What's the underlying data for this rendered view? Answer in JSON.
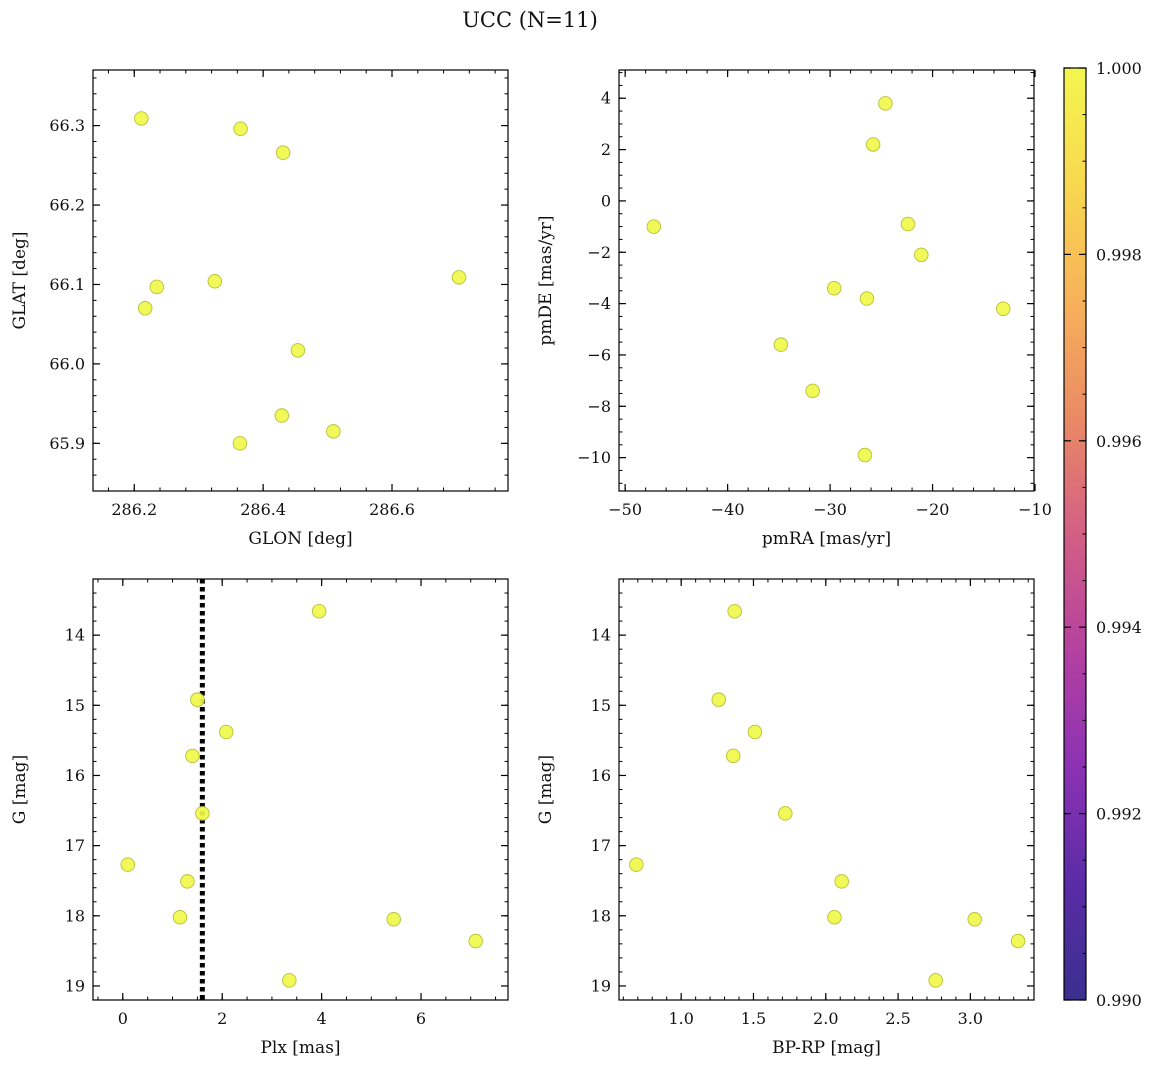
{
  "figure": {
    "title": "UCC (N=11)"
  },
  "colors": {
    "point_fill": "#f0f94a",
    "point_edge": "#b9c03a",
    "colormap": [
      "#3a2f8f",
      "#5a2ca6",
      "#8c32b4",
      "#b4419f",
      "#d35f85",
      "#ea8a65",
      "#f7b25a",
      "#f8d84f",
      "#f4f64f"
    ],
    "ref_line": "#000000"
  },
  "colorbar": {
    "min": 0.99,
    "max": 1.0,
    "ticks": [
      "0.990",
      "0.992",
      "0.994",
      "0.996",
      "0.998",
      "1.000"
    ]
  },
  "chart_data": [
    {
      "id": "panel-glon-glat",
      "type": "scatter",
      "xlabel": "GLON [deg]",
      "ylabel": "GLAT [deg]",
      "xlim": [
        286.136,
        286.78
      ],
      "ylim": [
        65.84,
        66.37
      ],
      "inverted_y": false,
      "xticks": [
        286.2,
        286.4,
        286.6
      ],
      "xtick_labels": [
        "286.2",
        "286.4",
        "286.6"
      ],
      "yticks": [
        65.9,
        66.0,
        66.1,
        66.2,
        66.3
      ],
      "ytick_labels": [
        "65.9",
        "66.0",
        "66.1",
        "66.2",
        "66.3"
      ],
      "xminor": 0.04,
      "yminor": 0.02,
      "points": [
        {
          "x": 286.211,
          "y": 66.309
        },
        {
          "x": 286.365,
          "y": 66.296
        },
        {
          "x": 286.431,
          "y": 66.266
        },
        {
          "x": 286.325,
          "y": 66.104
        },
        {
          "x": 286.235,
          "y": 66.097
        },
        {
          "x": 286.217,
          "y": 66.07
        },
        {
          "x": 286.704,
          "y": 66.109
        },
        {
          "x": 286.454,
          "y": 66.017
        },
        {
          "x": 286.429,
          "y": 65.935
        },
        {
          "x": 286.509,
          "y": 65.915
        },
        {
          "x": 286.364,
          "y": 65.9
        }
      ]
    },
    {
      "id": "panel-pmra-pmde",
      "type": "scatter",
      "xlabel": "pmRA [mas/yr]",
      "ylabel": "pmDE [mas/yr]",
      "xlim": [
        -50.6,
        -10.1
      ],
      "ylim": [
        -11.3,
        5.1
      ],
      "inverted_y": false,
      "xticks": [
        -50,
        -40,
        -30,
        -20,
        -10
      ],
      "xtick_labels": [
        "−50",
        "−40",
        "−30",
        "−20",
        "−10"
      ],
      "yticks": [
        -10,
        -8,
        -6,
        -4,
        -2,
        0,
        2,
        4
      ],
      "ytick_labels": [
        "−10",
        "−8",
        "−6",
        "−4",
        "−2",
        "0",
        "2",
        "4"
      ],
      "xminor": 2,
      "yminor": 0.5,
      "points": [
        {
          "x": -24.6,
          "y": 3.8
        },
        {
          "x": -25.8,
          "y": 2.2
        },
        {
          "x": -47.2,
          "y": -1.0
        },
        {
          "x": -22.4,
          "y": -0.9
        },
        {
          "x": -21.1,
          "y": -2.1
        },
        {
          "x": -29.6,
          "y": -3.4
        },
        {
          "x": -26.4,
          "y": -3.8
        },
        {
          "x": -13.1,
          "y": -4.2
        },
        {
          "x": -34.8,
          "y": -5.6
        },
        {
          "x": -31.7,
          "y": -7.4
        },
        {
          "x": -26.6,
          "y": -9.9
        }
      ]
    },
    {
      "id": "panel-plx-g",
      "type": "scatter",
      "xlabel": "Plx [mas]",
      "ylabel": "G [mag]",
      "xlim": [
        -0.6,
        7.75
      ],
      "ylim": [
        13.2,
        19.2
      ],
      "inverted_y": true,
      "xticks": [
        0,
        2,
        4,
        6
      ],
      "xtick_labels": [
        "0",
        "2",
        "4",
        "6"
      ],
      "yticks": [
        14,
        15,
        16,
        17,
        18,
        19
      ],
      "ytick_labels": [
        "14",
        "15",
        "16",
        "17",
        "18",
        "19"
      ],
      "xminor": 0.5,
      "yminor": 0.2,
      "reference_x": 1.6,
      "points": [
        {
          "x": 3.95,
          "y": 13.66
        },
        {
          "x": 1.5,
          "y": 14.92
        },
        {
          "x": 2.08,
          "y": 15.38
        },
        {
          "x": 1.4,
          "y": 15.72
        },
        {
          "x": 1.6,
          "y": 16.54
        },
        {
          "x": 0.1,
          "y": 17.27
        },
        {
          "x": 1.3,
          "y": 17.51
        },
        {
          "x": 1.15,
          "y": 18.02
        },
        {
          "x": 5.45,
          "y": 18.05
        },
        {
          "x": 7.1,
          "y": 18.36
        },
        {
          "x": 3.35,
          "y": 18.92
        }
      ]
    },
    {
      "id": "panel-bprp-g",
      "type": "scatter",
      "xlabel": "BP-RP [mag]",
      "ylabel": "G [mag]",
      "xlim": [
        0.57,
        3.44
      ],
      "ylim": [
        13.2,
        19.2
      ],
      "inverted_y": true,
      "xticks": [
        1.0,
        1.5,
        2.0,
        2.5,
        3.0
      ],
      "xtick_labels": [
        "1.0",
        "1.5",
        "2.0",
        "2.5",
        "3.0"
      ],
      "yticks": [
        14,
        15,
        16,
        17,
        18,
        19
      ],
      "ytick_labels": [
        "14",
        "15",
        "16",
        "17",
        "18",
        "19"
      ],
      "xminor": 0.1,
      "yminor": 0.2,
      "points": [
        {
          "x": 1.37,
          "y": 13.66
        },
        {
          "x": 1.26,
          "y": 14.92
        },
        {
          "x": 1.51,
          "y": 15.38
        },
        {
          "x": 1.36,
          "y": 15.72
        },
        {
          "x": 1.72,
          "y": 16.54
        },
        {
          "x": 0.69,
          "y": 17.27
        },
        {
          "x": 2.11,
          "y": 17.51
        },
        {
          "x": 2.06,
          "y": 18.02
        },
        {
          "x": 3.03,
          "y": 18.05
        },
        {
          "x": 3.33,
          "y": 18.36
        },
        {
          "x": 2.76,
          "y": 18.92
        }
      ]
    }
  ]
}
